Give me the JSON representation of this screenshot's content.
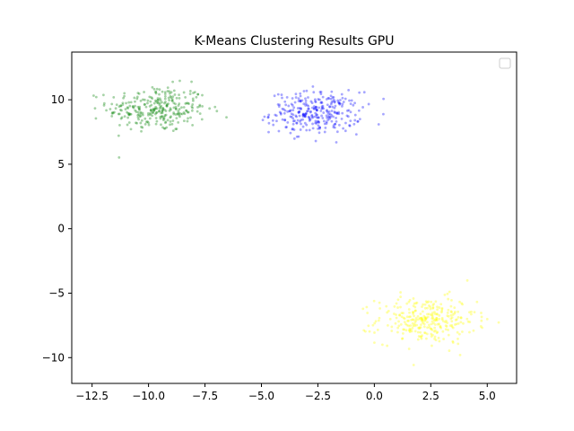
{
  "chart_data": {
    "type": "scatter",
    "title": "K-Means Clustering Results GPU",
    "xlabel": "",
    "ylabel": "",
    "xlim": [
      -13.4,
      6.3
    ],
    "ylim": [
      -12.0,
      13.7
    ],
    "xticks": [
      -12.5,
      -10.0,
      -7.5,
      -5.0,
      -2.5,
      0.0,
      2.5,
      5.0
    ],
    "xtick_labels": [
      "−12.5",
      "−10.0",
      "−7.5",
      "−5.0",
      "−2.5",
      "0.0",
      "2.5",
      "5.0"
    ],
    "yticks": [
      -10,
      -5,
      0,
      5,
      10
    ],
    "ytick_labels": [
      "−10",
      "−5",
      "0",
      "5",
      "10"
    ],
    "grid": false,
    "legend": {
      "placement": "top-right",
      "entries": []
    },
    "series": [
      {
        "color": "#008000",
        "center": [
          -9.6,
          9.3
        ],
        "spread": [
          1.1,
          0.9
        ],
        "count": 300
      },
      {
        "color": "#0000ff",
        "center": [
          -2.6,
          9.0
        ],
        "spread": [
          1.0,
          0.8
        ],
        "count": 300
      },
      {
        "color": "#ffff00",
        "center": [
          2.3,
          -7.1
        ],
        "spread": [
          1.1,
          0.9
        ],
        "count": 300
      }
    ]
  }
}
